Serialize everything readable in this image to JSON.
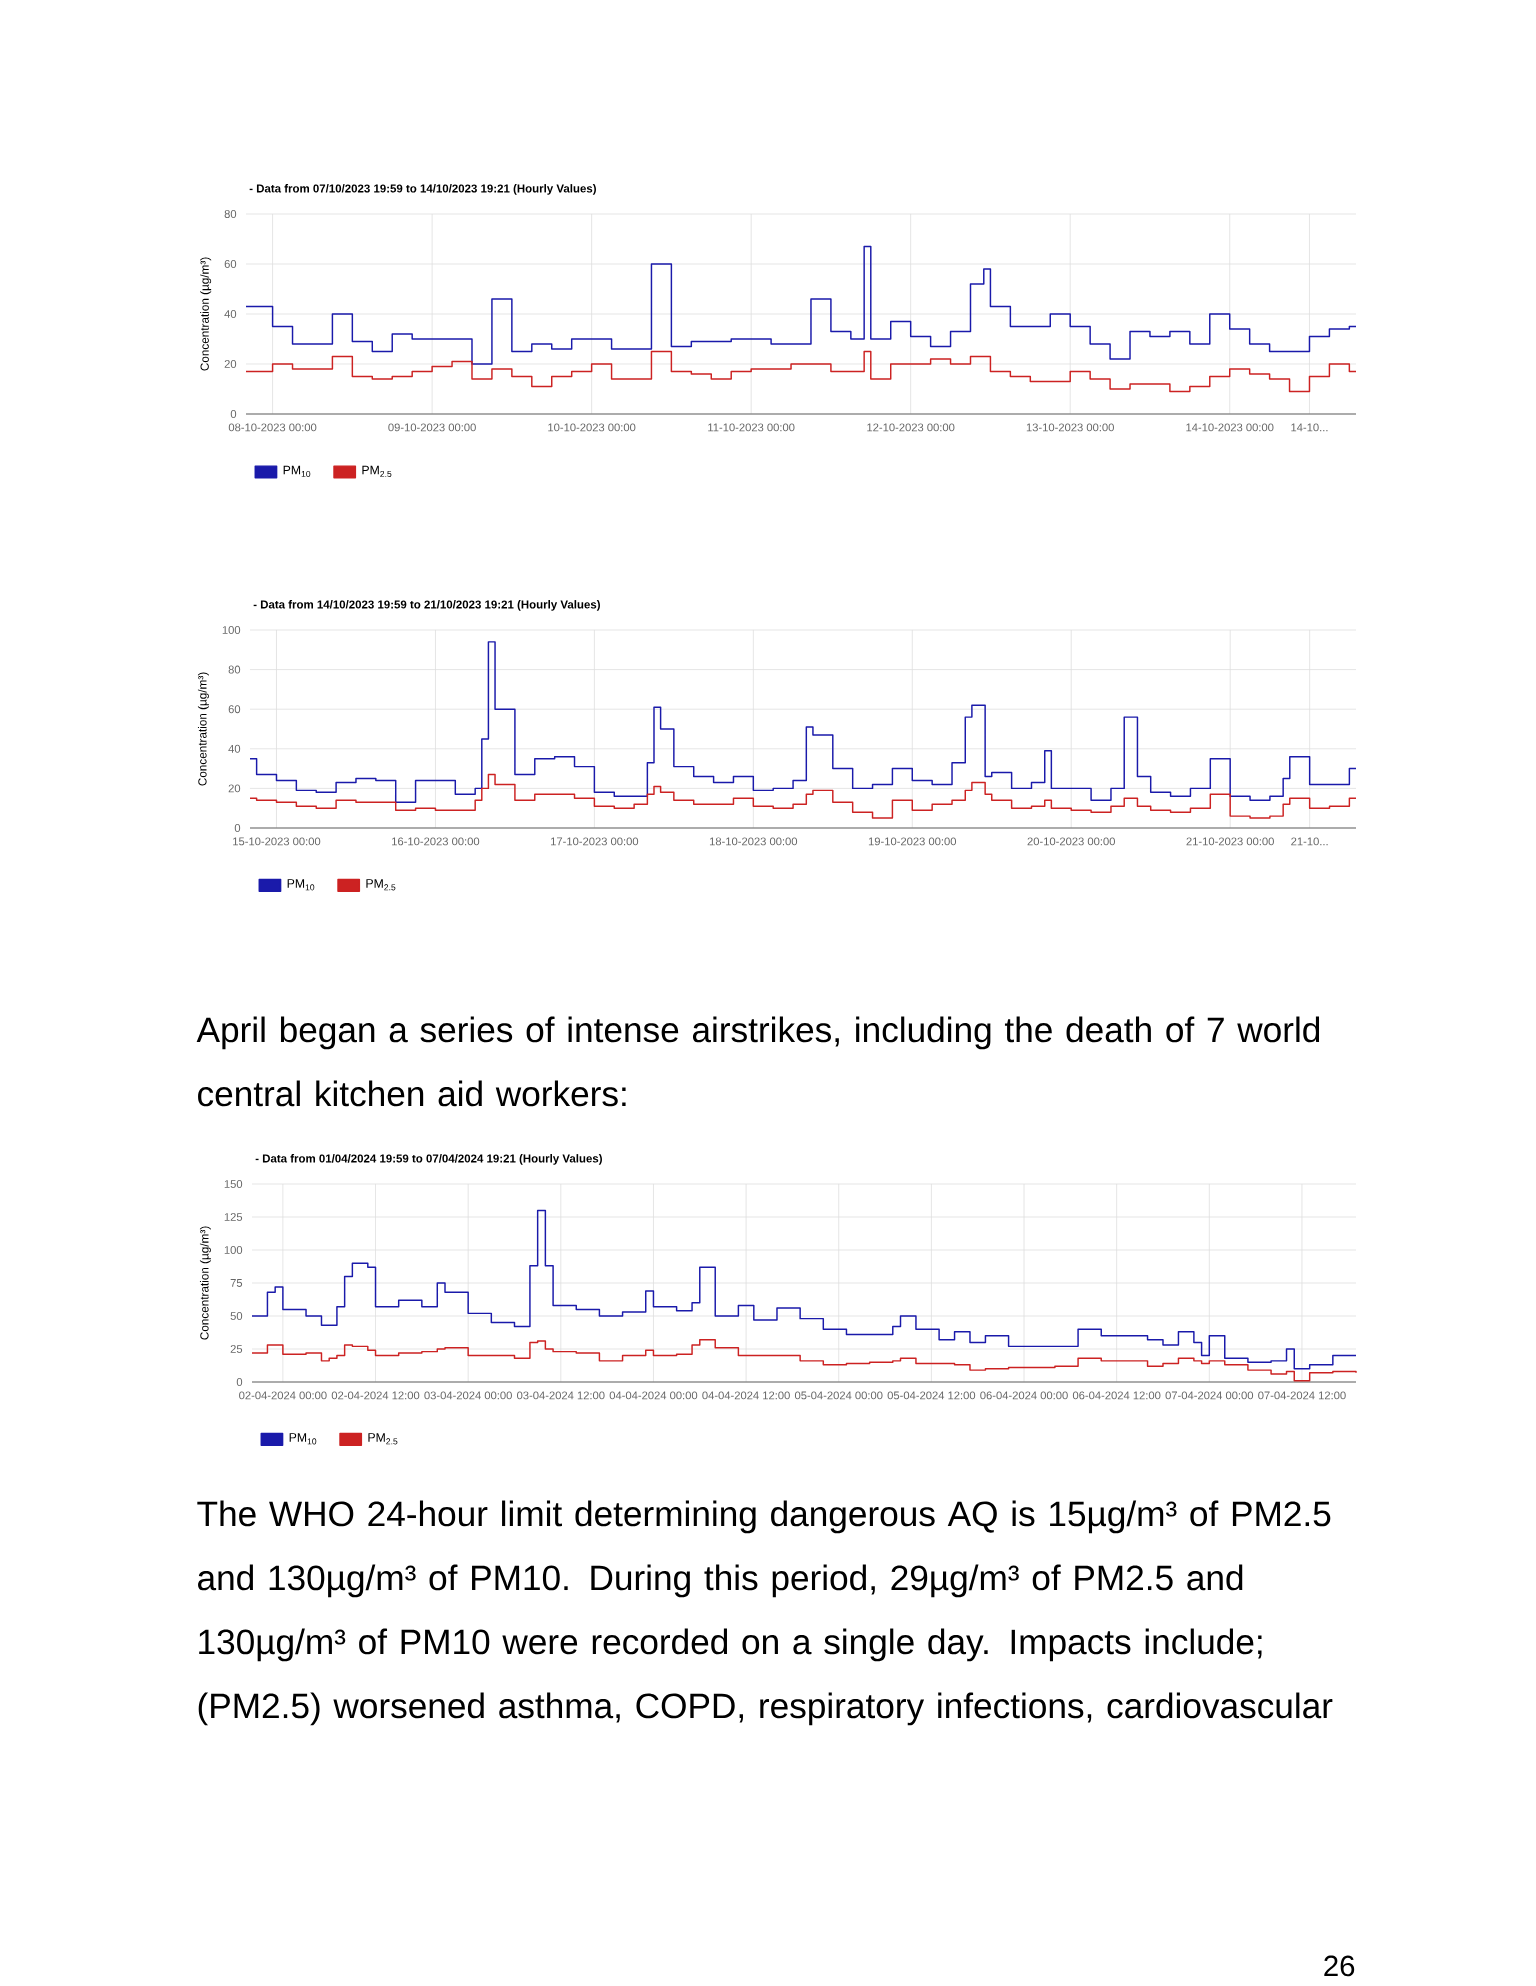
{
  "chart_data": [
    {
      "type": "step",
      "title": "- Data from 07/10/2023 19:59 to 14/10/2023 19:21 (Hourly Values)",
      "ylabel": "Concentration (µg/m³)",
      "xlim": [
        "2023-10-07T20:00",
        "2023-10-14T19:00"
      ],
      "xticks": [
        {
          "value": "2023-10-08T00:00",
          "label": "08-10-2023 00:00"
        },
        {
          "value": "2023-10-09T00:00",
          "label": "09-10-2023 00:00"
        },
        {
          "value": "2023-10-10T00:00",
          "label": "10-10-2023 00:00"
        },
        {
          "value": "2023-10-11T00:00",
          "label": "11-10-2023 00:00"
        },
        {
          "value": "2023-10-12T00:00",
          "label": "12-10-2023 00:00"
        },
        {
          "value": "2023-10-13T00:00",
          "label": "13-10-2023 00:00"
        },
        {
          "value": "2023-10-14T00:00",
          "label": "14-10-2023 00:00"
        },
        {
          "value": "2023-10-14T12:00",
          "label": "14-10..."
        }
      ],
      "ylim": [
        0,
        80
      ],
      "yticks": [
        0,
        20,
        40,
        60,
        80
      ],
      "grid": true,
      "legend": "bottom",
      "x": [
        "2023-10-07T20:00",
        "2023-10-08T00:00",
        "2023-10-08T03:00",
        "2023-10-08T06:00",
        "2023-10-08T09:00",
        "2023-10-08T12:00",
        "2023-10-08T15:00",
        "2023-10-08T18:00",
        "2023-10-08T21:00",
        "2023-10-09T00:00",
        "2023-10-09T03:00",
        "2023-10-09T06:00",
        "2023-10-09T09:00",
        "2023-10-09T12:00",
        "2023-10-09T15:00",
        "2023-10-09T18:00",
        "2023-10-09T21:00",
        "2023-10-10T00:00",
        "2023-10-10T03:00",
        "2023-10-10T06:00",
        "2023-10-10T09:00",
        "2023-10-10T12:00",
        "2023-10-10T15:00",
        "2023-10-10T18:00",
        "2023-10-10T21:00",
        "2023-10-11T00:00",
        "2023-10-11T03:00",
        "2023-10-11T06:00",
        "2023-10-11T09:00",
        "2023-10-11T12:00",
        "2023-10-11T15:00",
        "2023-10-11T17:00",
        "2023-10-11T18:00",
        "2023-10-11T21:00",
        "2023-10-12T00:00",
        "2023-10-12T03:00",
        "2023-10-12T06:00",
        "2023-10-12T09:00",
        "2023-10-12T11:00",
        "2023-10-12T12:00",
        "2023-10-12T15:00",
        "2023-10-12T18:00",
        "2023-10-12T21:00",
        "2023-10-13T00:00",
        "2023-10-13T03:00",
        "2023-10-13T06:00",
        "2023-10-13T09:00",
        "2023-10-13T12:00",
        "2023-10-13T15:00",
        "2023-10-13T18:00",
        "2023-10-13T21:00",
        "2023-10-14T00:00",
        "2023-10-14T03:00",
        "2023-10-14T06:00",
        "2023-10-14T09:00",
        "2023-10-14T12:00",
        "2023-10-14T15:00",
        "2023-10-14T18:00",
        "2023-10-14T19:00"
      ],
      "series": [
        {
          "name": "PM$_{10}$",
          "color": "#1a1aaa",
          "values": [
            43,
            35,
            28,
            28,
            40,
            29,
            25,
            32,
            30,
            30,
            30,
            20,
            46,
            25,
            28,
            26,
            30,
            30,
            26,
            26,
            60,
            27,
            29,
            29,
            30,
            30,
            28,
            28,
            46,
            33,
            30,
            67,
            30,
            37,
            31,
            27,
            33,
            52,
            58,
            43,
            35,
            35,
            40,
            35,
            28,
            22,
            33,
            31,
            33,
            28,
            40,
            34,
            28,
            25,
            25,
            31,
            34,
            35,
            35
          ]
        },
        {
          "name": "PM$_{2.5}$",
          "color": "#cc2222",
          "values": [
            17,
            20,
            18,
            18,
            23,
            15,
            14,
            15,
            17,
            19,
            21,
            14,
            18,
            15,
            11,
            15,
            17,
            20,
            14,
            14,
            25,
            17,
            16,
            14,
            17,
            18,
            18,
            20,
            20,
            17,
            17,
            25,
            14,
            20,
            20,
            22,
            20,
            23,
            23,
            17,
            15,
            13,
            13,
            17,
            14,
            10,
            12,
            12,
            9,
            11,
            15,
            18,
            16,
            14,
            9,
            15,
            20,
            17,
            17
          ]
        }
      ]
    },
    {
      "type": "step",
      "title": "- Data from 14/10/2023 19:59 to 21/10/2023 19:21 (Hourly Values)",
      "ylabel": "Concentration (µg/m³)",
      "xlim": [
        "2023-10-14T20:00",
        "2023-10-21T19:00"
      ],
      "xticks": [
        {
          "value": "2023-10-15T00:00",
          "label": "15-10-2023 00:00"
        },
        {
          "value": "2023-10-16T00:00",
          "label": "16-10-2023 00:00"
        },
        {
          "value": "2023-10-17T00:00",
          "label": "17-10-2023 00:00"
        },
        {
          "value": "2023-10-18T00:00",
          "label": "18-10-2023 00:00"
        },
        {
          "value": "2023-10-19T00:00",
          "label": "19-10-2023 00:00"
        },
        {
          "value": "2023-10-20T00:00",
          "label": "20-10-2023 00:00"
        },
        {
          "value": "2023-10-21T00:00",
          "label": "21-10-2023 00:00"
        },
        {
          "value": "2023-10-21T12:00",
          "label": "21-10..."
        }
      ],
      "ylim": [
        0,
        100
      ],
      "yticks": [
        0,
        20,
        40,
        60,
        80,
        100
      ],
      "grid": true,
      "legend": "bottom",
      "x": [
        "2023-10-14T20:00",
        "2023-10-14T21:00",
        "2023-10-15T00:00",
        "2023-10-15T03:00",
        "2023-10-15T06:00",
        "2023-10-15T09:00",
        "2023-10-15T12:00",
        "2023-10-15T15:00",
        "2023-10-15T18:00",
        "2023-10-15T21:00",
        "2023-10-16T00:00",
        "2023-10-16T03:00",
        "2023-10-16T06:00",
        "2023-10-16T07:00",
        "2023-10-16T08:00",
        "2023-10-16T09:00",
        "2023-10-16T12:00",
        "2023-10-16T15:00",
        "2023-10-16T18:00",
        "2023-10-16T21:00",
        "2023-10-17T00:00",
        "2023-10-17T03:00",
        "2023-10-17T06:00",
        "2023-10-17T08:00",
        "2023-10-17T09:00",
        "2023-10-17T10:00",
        "2023-10-17T12:00",
        "2023-10-17T15:00",
        "2023-10-17T18:00",
        "2023-10-17T21:00",
        "2023-10-18T00:00",
        "2023-10-18T03:00",
        "2023-10-18T06:00",
        "2023-10-18T08:00",
        "2023-10-18T09:00",
        "2023-10-18T12:00",
        "2023-10-18T15:00",
        "2023-10-18T18:00",
        "2023-10-18T21:00",
        "2023-10-19T00:00",
        "2023-10-19T03:00",
        "2023-10-19T06:00",
        "2023-10-19T08:00",
        "2023-10-19T09:00",
        "2023-10-19T11:00",
        "2023-10-19T12:00",
        "2023-10-19T15:00",
        "2023-10-19T18:00",
        "2023-10-19T20:00",
        "2023-10-19T21:00",
        "2023-10-20T00:00",
        "2023-10-20T03:00",
        "2023-10-20T06:00",
        "2023-10-20T08:00",
        "2023-10-20T10:00",
        "2023-10-20T12:00",
        "2023-10-20T15:00",
        "2023-10-20T18:00",
        "2023-10-20T21:00",
        "2023-10-21T00:00",
        "2023-10-21T03:00",
        "2023-10-21T06:00",
        "2023-10-21T08:00",
        "2023-10-21T09:00",
        "2023-10-21T12:00",
        "2023-10-21T15:00",
        "2023-10-21T18:00",
        "2023-10-21T19:00"
      ],
      "series": [
        {
          "name": "PM$_{10}$",
          "color": "#1a1aaa",
          "values": [
            35,
            27,
            24,
            19,
            18,
            23,
            25,
            24,
            13,
            24,
            24,
            17,
            20,
            45,
            94,
            60,
            27,
            35,
            36,
            31,
            18,
            16,
            16,
            33,
            61,
            50,
            31,
            26,
            23,
            26,
            19,
            20,
            24,
            51,
            47,
            30,
            20,
            22,
            30,
            24,
            22,
            33,
            56,
            62,
            26,
            28,
            20,
            23,
            39,
            20,
            20,
            14,
            20,
            56,
            26,
            18,
            16,
            20,
            35,
            16,
            14,
            16,
            25,
            36,
            22,
            22,
            30,
            30
          ]
        },
        {
          "name": "PM$_{2.5}$",
          "color": "#cc2222",
          "values": [
            15,
            14,
            13,
            11,
            10,
            14,
            13,
            13,
            9,
            10,
            9,
            9,
            14,
            20,
            27,
            22,
            14,
            17,
            17,
            15,
            11,
            10,
            12,
            17,
            21,
            18,
            14,
            12,
            12,
            15,
            11,
            10,
            12,
            17,
            19,
            13,
            8,
            5,
            14,
            9,
            12,
            14,
            19,
            23,
            17,
            14,
            10,
            11,
            14,
            10,
            9,
            8,
            11,
            15,
            11,
            9,
            8,
            10,
            17,
            6,
            5,
            6,
            12,
            15,
            10,
            11,
            15,
            15
          ]
        }
      ]
    },
    {
      "type": "step",
      "title": "- Data from 01/04/2024 19:59 to 07/04/2024 19:21 (Hourly Values)",
      "ylabel": "Concentration (µg/m³)",
      "xlim": [
        "2024-04-01T20:00",
        "2024-04-07T19:00"
      ],
      "xticks": [
        {
          "value": "2024-04-02T00:00",
          "label": "02-04-2024 00:00"
        },
        {
          "value": "2024-04-02T12:00",
          "label": "02-04-2024 12:00"
        },
        {
          "value": "2024-04-03T00:00",
          "label": "03-04-2024 00:00"
        },
        {
          "value": "2024-04-03T12:00",
          "label": "03-04-2024 12:00"
        },
        {
          "value": "2024-04-04T00:00",
          "label": "04-04-2024 00:00"
        },
        {
          "value": "2024-04-04T12:00",
          "label": "04-04-2024 12:00"
        },
        {
          "value": "2024-04-05T00:00",
          "label": "05-04-2024 00:00"
        },
        {
          "value": "2024-04-05T12:00",
          "label": "05-04-2024 12:00"
        },
        {
          "value": "2024-04-06T00:00",
          "label": "06-04-2024 00:00"
        },
        {
          "value": "2024-04-06T12:00",
          "label": "06-04-2024 12:00"
        },
        {
          "value": "2024-04-07T00:00",
          "label": "07-04-2024 00:00"
        },
        {
          "value": "2024-04-07T12:00",
          "label": "07-04-2024 12:00"
        }
      ],
      "ylim": [
        0,
        150
      ],
      "yticks": [
        0,
        25,
        50,
        75,
        100,
        125,
        150
      ],
      "grid": true,
      "legend": "bottom",
      "x": [
        "2024-04-01T20:00",
        "2024-04-01T22:00",
        "2024-04-01T23:00",
        "2024-04-02T00:00",
        "2024-04-02T03:00",
        "2024-04-02T05:00",
        "2024-04-02T06:00",
        "2024-04-02T07:00",
        "2024-04-02T08:00",
        "2024-04-02T09:00",
        "2024-04-02T11:00",
        "2024-04-02T12:00",
        "2024-04-02T15:00",
        "2024-04-02T18:00",
        "2024-04-02T20:00",
        "2024-04-02T21:00",
        "2024-04-03T00:00",
        "2024-04-03T03:00",
        "2024-04-03T06:00",
        "2024-04-03T08:00",
        "2024-04-03T09:00",
        "2024-04-03T10:00",
        "2024-04-03T11:00",
        "2024-04-03T14:00",
        "2024-04-03T17:00",
        "2024-04-03T20:00",
        "2024-04-03T23:00",
        "2024-04-04T00:00",
        "2024-04-04T03:00",
        "2024-04-04T05:00",
        "2024-04-04T06:00",
        "2024-04-04T08:00",
        "2024-04-04T11:00",
        "2024-04-04T13:00",
        "2024-04-04T16:00",
        "2024-04-04T19:00",
        "2024-04-04T22:00",
        "2024-04-05T01:00",
        "2024-04-05T04:00",
        "2024-04-05T07:00",
        "2024-04-05T08:00",
        "2024-04-05T10:00",
        "2024-04-05T13:00",
        "2024-04-05T15:00",
        "2024-04-05T17:00",
        "2024-04-05T19:00",
        "2024-04-05T22:00",
        "2024-04-06T01:00",
        "2024-04-06T04:00",
        "2024-04-06T07:00",
        "2024-04-06T10:00",
        "2024-04-06T13:00",
        "2024-04-06T16:00",
        "2024-04-06T18:00",
        "2024-04-06T20:00",
        "2024-04-06T22:00",
        "2024-04-06T23:00",
        "2024-04-07T00:00",
        "2024-04-07T02:00",
        "2024-04-07T05:00",
        "2024-04-07T08:00",
        "2024-04-07T10:00",
        "2024-04-07T11:00",
        "2024-04-07T13:00",
        "2024-04-07T16:00",
        "2024-04-07T19:00"
      ],
      "series": [
        {
          "name": "PM$_{10}$",
          "color": "#1a1aaa",
          "values": [
            50,
            68,
            72,
            55,
            50,
            43,
            43,
            57,
            80,
            90,
            87,
            57,
            62,
            57,
            75,
            68,
            52,
            45,
            42,
            88,
            130,
            88,
            58,
            55,
            50,
            53,
            69,
            57,
            54,
            60,
            87,
            50,
            58,
            47,
            56,
            48,
            40,
            36,
            36,
            42,
            50,
            40,
            32,
            38,
            30,
            35,
            27,
            27,
            27,
            40,
            35,
            35,
            32,
            28,
            38,
            30,
            20,
            35,
            18,
            15,
            16,
            25,
            10,
            13,
            20,
            20
          ]
        },
        {
          "name": "PM$_{2.5}$",
          "color": "#cc2222",
          "values": [
            22,
            28,
            28,
            21,
            22,
            16,
            18,
            20,
            28,
            27,
            24,
            20,
            22,
            23,
            25,
            26,
            20,
            20,
            18,
            30,
            31,
            25,
            23,
            22,
            16,
            20,
            24,
            20,
            21,
            28,
            32,
            26,
            20,
            20,
            20,
            16,
            13,
            14,
            15,
            16,
            18,
            14,
            14,
            13,
            9,
            10,
            11,
            11,
            12,
            18,
            16,
            16,
            12,
            14,
            18,
            16,
            14,
            16,
            13,
            9,
            6,
            8,
            1,
            7,
            8,
            7
          ]
        }
      ],
      "annotations": [
        "April began a series of intense airstrikes, including the death of 7 world central kitchen aid workers:",
        "The WHO 24-hour limit determining dangerous AQ is 15µg/m³ of PM2.5 and 130µg/m³ of PM10. During this period, 29µg/m³ of PM2.5 and 130µg/m³ of PM10 were recorded on a single day. Impacts include; (PM2.5) worsened asthma, COPD, respiratory infections, cardiovascular",
        "26"
      ]
    }
  ]
}
